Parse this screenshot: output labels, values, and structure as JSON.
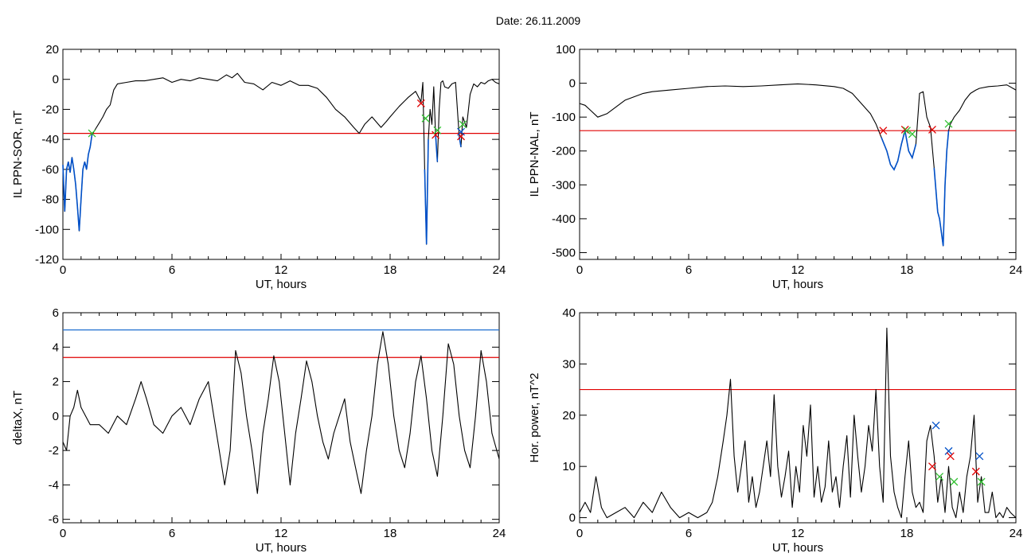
{
  "figure": {
    "date_title": "Date:  26.11.2009"
  },
  "chart_data": [
    {
      "type": "line",
      "ylabel": "IL PPN-SOR, nT",
      "xlabel": "UT, hours",
      "xlim": [
        0,
        24
      ],
      "ylim": [
        -120,
        20
      ],
      "xticks": [
        0,
        6,
        12,
        18,
        24
      ],
      "yticks": [
        20,
        0,
        -20,
        -40,
        -60,
        -80,
        -100,
        -120
      ],
      "grid": false,
      "colors": {
        "trace": "#000000",
        "below": "#0050c8",
        "threshold": "#e00000"
      },
      "thresholds": [
        {
          "value": -36,
          "color": "#e00000"
        }
      ],
      "series": [
        {
          "x": [
            0,
            0.1,
            0.2,
            0.3,
            0.4,
            0.5,
            0.6,
            0.7,
            0.8,
            0.9,
            1.0,
            1.1,
            1.2,
            1.3,
            1.4,
            1.5,
            1.6,
            1.8,
            2.0,
            2.2,
            2.4,
            2.6,
            2.8,
            3.0,
            3.5,
            4.0,
            4.5,
            5.0,
            5.5,
            6.0,
            6.5,
            7.0,
            7.5,
            8.0,
            8.5,
            9.0,
            9.3,
            9.6,
            10.0,
            10.5,
            11.0,
            11.5,
            12.0,
            12.5,
            13.0,
            13.5,
            14.0,
            14.5,
            15.0,
            15.5,
            16.0,
            16.3,
            16.6,
            17.0,
            17.5,
            17.8,
            18.0,
            18.5,
            19.0,
            19.4,
            19.7,
            19.8,
            19.9,
            20.0,
            20.1,
            20.2,
            20.3,
            20.4,
            20.5,
            20.6,
            20.7,
            20.8,
            20.9,
            21.0,
            21.2,
            21.4,
            21.6,
            21.8,
            21.9,
            22.0,
            22.2,
            22.4,
            22.6,
            22.8,
            23.0,
            23.2,
            23.4,
            23.6,
            23.8,
            24.0
          ],
          "y": [
            -57,
            -88,
            -60,
            -55,
            -62,
            -52,
            -60,
            -70,
            -85,
            -101,
            -80,
            -60,
            -55,
            -60,
            -50,
            -45,
            -37,
            -33,
            -29,
            -25,
            -20,
            -17,
            -7,
            -3,
            -2,
            -1,
            -1,
            0,
            1,
            -2,
            0,
            -1,
            1,
            0,
            -1,
            3,
            1,
            4,
            -2,
            -3,
            -7,
            -2,
            -4,
            -1,
            -4,
            -4,
            -6,
            -12,
            -20,
            -25,
            -32,
            -36,
            -30,
            -25,
            -32,
            -28,
            -25,
            -18,
            -12,
            -8,
            -15,
            -2,
            -60,
            -110,
            -40,
            -20,
            -30,
            -5,
            -37,
            -55,
            -20,
            -2,
            -1,
            -5,
            -6,
            -3,
            -2,
            -38,
            -45,
            -25,
            -32,
            -10,
            -3,
            -5,
            -2,
            -3,
            -1,
            0,
            -2,
            -3
          ]
        }
      ],
      "markers": [
        {
          "x": 19.7,
          "y": -16,
          "symbol": "x",
          "color": "#e00000"
        },
        {
          "x": 20.5,
          "y": -37,
          "symbol": "x",
          "color": "#e00000"
        },
        {
          "x": 21.9,
          "y": -38,
          "symbol": "x",
          "color": "#e00000"
        },
        {
          "x": 1.6,
          "y": -36,
          "symbol": "x",
          "color": "#30c030"
        },
        {
          "x": 19.95,
          "y": -26,
          "symbol": "x",
          "color": "#30c030"
        },
        {
          "x": 20.6,
          "y": -34,
          "symbol": "x",
          "color": "#30c030"
        },
        {
          "x": 22.0,
          "y": -30,
          "symbol": "x",
          "color": "#30c030"
        },
        {
          "x": 21.9,
          "y": -35,
          "symbol": "x",
          "color": "#0050c8"
        }
      ]
    },
    {
      "type": "line",
      "ylabel": "IL PPN-NAL, nT",
      "xlabel": "UT, hours",
      "xlim": [
        0,
        24
      ],
      "ylim": [
        -520,
        100
      ],
      "xticks": [
        0,
        6,
        12,
        18,
        24
      ],
      "yticks": [
        100,
        0,
        -100,
        -200,
        -300,
        -400,
        -500
      ],
      "grid": false,
      "colors": {
        "trace": "#000000",
        "below": "#0050c8",
        "threshold": "#e00000"
      },
      "thresholds": [
        {
          "value": -140,
          "color": "#e00000"
        }
      ],
      "series": [
        {
          "x": [
            0,
            0.3,
            0.6,
            1.0,
            1.5,
            2.0,
            2.5,
            3.0,
            3.5,
            4.0,
            5.0,
            6.0,
            7.0,
            8.0,
            9.0,
            10.0,
            11.0,
            12.0,
            13.0,
            14.0,
            14.5,
            15.0,
            15.5,
            16.0,
            16.3,
            16.6,
            16.9,
            17.1,
            17.3,
            17.5,
            17.7,
            17.9,
            18.1,
            18.3,
            18.5,
            18.7,
            18.9,
            19.1,
            19.3,
            19.5,
            19.7,
            19.8,
            19.9,
            20.0,
            20.1,
            20.2,
            20.3,
            20.4,
            20.6,
            20.9,
            21.2,
            21.5,
            21.8,
            22.0,
            22.5,
            23.0,
            23.5,
            24.0
          ],
          "y": [
            -60,
            -65,
            -80,
            -100,
            -90,
            -70,
            -50,
            -40,
            -30,
            -25,
            -20,
            -15,
            -10,
            -8,
            -10,
            -8,
            -5,
            -2,
            -5,
            -10,
            -15,
            -30,
            -60,
            -90,
            -120,
            -160,
            -200,
            -240,
            -255,
            -230,
            -180,
            -140,
            -200,
            -220,
            -180,
            -30,
            -25,
            -100,
            -130,
            -250,
            -380,
            -400,
            -440,
            -480,
            -300,
            -200,
            -140,
            -120,
            -100,
            -80,
            -50,
            -30,
            -20,
            -15,
            -10,
            -8,
            -5,
            -20
          ]
        }
      ],
      "markers": [
        {
          "x": 16.7,
          "y": -140,
          "symbol": "x",
          "color": "#e00000"
        },
        {
          "x": 17.9,
          "y": -137,
          "symbol": "x",
          "color": "#e00000"
        },
        {
          "x": 19.4,
          "y": -137,
          "symbol": "x",
          "color": "#e00000"
        },
        {
          "x": 18.0,
          "y": -140,
          "symbol": "x",
          "color": "#30c030"
        },
        {
          "x": 18.3,
          "y": -150,
          "symbol": "x",
          "color": "#30c030"
        },
        {
          "x": 20.3,
          "y": -120,
          "symbol": "x",
          "color": "#30c030"
        }
      ]
    },
    {
      "type": "line",
      "ylabel": "deltaX, nT",
      "xlabel": "UT, hours",
      "xlim": [
        0,
        24
      ],
      "ylim": [
        -6.2,
        6
      ],
      "xticks": [
        0,
        6,
        12,
        18,
        24
      ],
      "yticks": [
        6,
        4,
        2,
        0,
        -2,
        -4,
        -6
      ],
      "grid": false,
      "colors": {
        "trace": "#000000"
      },
      "thresholds": [
        {
          "value": 5.0,
          "color": "#2070d0"
        },
        {
          "value": 3.4,
          "color": "#e00000"
        }
      ],
      "series": [
        {
          "x": [
            0,
            0.2,
            0.4,
            0.6,
            0.8,
            1.0,
            1.5,
            2.0,
            2.5,
            3.0,
            3.5,
            4.0,
            4.3,
            4.6,
            5.0,
            5.5,
            6.0,
            6.5,
            7.0,
            7.5,
            8.0,
            8.3,
            8.6,
            8.9,
            9.2,
            9.5,
            9.8,
            10.1,
            10.4,
            10.7,
            11.0,
            11.3,
            11.6,
            11.9,
            12.2,
            12.5,
            12.8,
            13.1,
            13.4,
            13.7,
            14.0,
            14.3,
            14.6,
            14.9,
            15.2,
            15.5,
            15.8,
            16.1,
            16.4,
            16.7,
            17.0,
            17.3,
            17.6,
            17.9,
            18.2,
            18.5,
            18.8,
            19.1,
            19.4,
            19.7,
            20.0,
            20.3,
            20.6,
            20.9,
            21.2,
            21.5,
            21.8,
            22.1,
            22.4,
            22.7,
            23.0,
            23.3,
            23.6,
            24.0
          ],
          "y": [
            -1.5,
            -2,
            0,
            0.5,
            1.5,
            0.5,
            -0.5,
            -0.5,
            -1,
            0,
            -0.5,
            1,
            2,
            1,
            -0.5,
            -1,
            0,
            0.5,
            -0.5,
            1,
            2,
            0,
            -2,
            -4,
            -2,
            3.8,
            2.5,
            0,
            -2,
            -4.5,
            -1,
            1,
            3.5,
            2,
            -1,
            -4,
            -1,
            1,
            3.2,
            2,
            0,
            -1.5,
            -2.5,
            -1,
            0,
            1,
            -1.5,
            -3,
            -4.5,
            -2,
            0,
            3,
            4.9,
            3,
            0,
            -2,
            -3,
            -1,
            2,
            3.5,
            1,
            -2,
            -3.5,
            0,
            4.2,
            3,
            0,
            -2,
            -3,
            0,
            3.8,
            2,
            -1,
            -2.5
          ]
        }
      ],
      "markers": []
    },
    {
      "type": "line",
      "ylabel": "Hor. power, nT^2",
      "xlabel": "UT, hours",
      "xlim": [
        0,
        24
      ],
      "ylim": [
        -1,
        40
      ],
      "xticks": [
        0,
        6,
        12,
        18,
        24
      ],
      "yticks": [
        40,
        30,
        20,
        10,
        0
      ],
      "grid": false,
      "colors": {
        "trace": "#000000"
      },
      "thresholds": [
        {
          "value": 25,
          "color": "#e00000"
        }
      ],
      "series": [
        {
          "x": [
            0,
            0.3,
            0.6,
            0.9,
            1.2,
            1.5,
            2.0,
            2.5,
            3.0,
            3.5,
            4.0,
            4.5,
            5.0,
            5.5,
            6.0,
            6.5,
            7.0,
            7.3,
            7.6,
            7.9,
            8.1,
            8.3,
            8.5,
            8.7,
            8.9,
            9.1,
            9.3,
            9.5,
            9.7,
            9.9,
            10.1,
            10.3,
            10.5,
            10.7,
            10.9,
            11.1,
            11.3,
            11.5,
            11.7,
            11.9,
            12.1,
            12.3,
            12.5,
            12.7,
            12.9,
            13.1,
            13.3,
            13.5,
            13.7,
            13.9,
            14.1,
            14.3,
            14.5,
            14.7,
            14.9,
            15.1,
            15.3,
            15.5,
            15.7,
            15.9,
            16.1,
            16.3,
            16.5,
            16.7,
            16.9,
            17.1,
            17.3,
            17.5,
            17.7,
            17.9,
            18.1,
            18.3,
            18.5,
            18.7,
            18.9,
            19.1,
            19.3,
            19.5,
            19.7,
            19.9,
            20.1,
            20.3,
            20.5,
            20.7,
            20.9,
            21.1,
            21.3,
            21.5,
            21.7,
            21.9,
            22.1,
            22.3,
            22.5,
            22.7,
            22.9,
            23.1,
            23.3,
            23.5,
            23.7,
            24.0
          ],
          "y": [
            1,
            3,
            1,
            8,
            2,
            0,
            1,
            2,
            0,
            3,
            1,
            5,
            2,
            0,
            1,
            0,
            1,
            3,
            8,
            15,
            20,
            27,
            12,
            5,
            10,
            15,
            3,
            8,
            2,
            5,
            10,
            15,
            8,
            24,
            10,
            4,
            8,
            13,
            2,
            10,
            5,
            18,
            12,
            22,
            4,
            10,
            3,
            6,
            15,
            5,
            8,
            2,
            10,
            16,
            4,
            20,
            12,
            5,
            10,
            18,
            13,
            25,
            10,
            3,
            37,
            12,
            5,
            2,
            0,
            8,
            15,
            5,
            2,
            3,
            1,
            15,
            18,
            12,
            3,
            8,
            1,
            10,
            2,
            0,
            5,
            1,
            8,
            12,
            20,
            3,
            8,
            1,
            1,
            5,
            0,
            1,
            0,
            2,
            1,
            0
          ]
        }
      ],
      "markers": [
        {
          "x": 19.6,
          "y": 18,
          "symbol": "x",
          "color": "#0050c8"
        },
        {
          "x": 20.3,
          "y": 13,
          "symbol": "x",
          "color": "#0050c8"
        },
        {
          "x": 22.0,
          "y": 12,
          "symbol": "x",
          "color": "#0050c8"
        },
        {
          "x": 19.4,
          "y": 10,
          "symbol": "x",
          "color": "#e00000"
        },
        {
          "x": 20.4,
          "y": 12,
          "symbol": "x",
          "color": "#e00000"
        },
        {
          "x": 21.8,
          "y": 9,
          "symbol": "x",
          "color": "#e00000"
        },
        {
          "x": 19.8,
          "y": 8,
          "symbol": "x",
          "color": "#30c030"
        },
        {
          "x": 20.6,
          "y": 7,
          "symbol": "x",
          "color": "#30c030"
        },
        {
          "x": 22.1,
          "y": 7,
          "symbol": "x",
          "color": "#30c030"
        }
      ]
    }
  ]
}
